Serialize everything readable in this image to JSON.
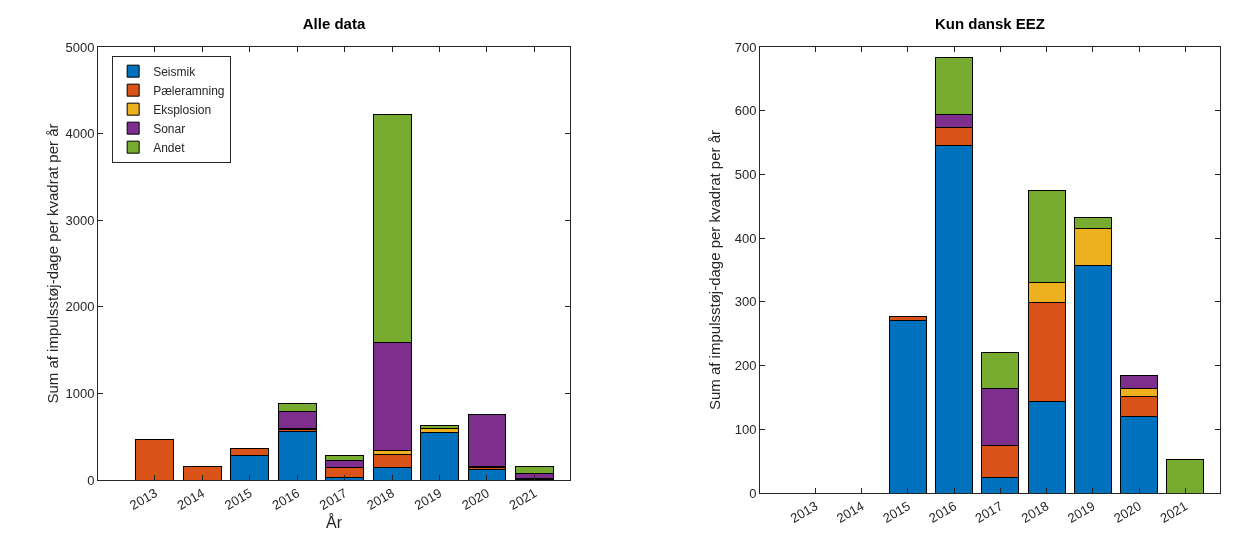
{
  "chart_data": [
    {
      "type": "bar",
      "title": "Alle data",
      "xlabel": "År",
      "ylabel": "Sum af impulsstøj-dage per kvadrat per år",
      "categories": [
        "2013",
        "2014",
        "2015",
        "2016",
        "2017",
        "2018",
        "2019",
        "2020",
        "2021"
      ],
      "stacked": true,
      "legend": "top left",
      "grid": false,
      "ylim": [
        0,
        5000
      ],
      "yticks": [
        0,
        1000,
        2000,
        3000,
        4000,
        5000
      ],
      "series": [
        {
          "name": "Seismik",
          "color": "#0072bd",
          "values": [
            null,
            null,
            280,
            560,
            30,
            150,
            550,
            120,
            null
          ]
        },
        {
          "name": "Pæleramning",
          "color": "#d95319",
          "values": [
            470,
            160,
            80,
            20,
            110,
            150,
            null,
            30,
            10
          ]
        },
        {
          "name": "Eksplosion",
          "color": "#edb120",
          "values": [
            null,
            null,
            null,
            10,
            null,
            40,
            50,
            10,
            10
          ]
        },
        {
          "name": "Sonar",
          "color": "#7e2f8e",
          "values": [
            null,
            null,
            null,
            200,
            90,
            1250,
            null,
            600,
            60
          ]
        },
        {
          "name": "Andet",
          "color": "#77ac30",
          "values": [
            null,
            null,
            null,
            90,
            50,
            2630,
            30,
            null,
            80
          ]
        }
      ]
    },
    {
      "type": "bar",
      "title": "Kun dansk EEZ",
      "ylabel": "Sum af impulsstøj-dage per kvadrat per år",
      "categories": [
        "2013",
        "2014",
        "2015",
        "2016",
        "2017",
        "2018",
        "2019",
        "2020",
        "2021"
      ],
      "stacked": true,
      "legend": false,
      "grid": false,
      "ylim": [
        0,
        700
      ],
      "yticks": [
        0,
        100,
        200,
        300,
        400,
        500,
        600,
        700
      ],
      "series": [
        {
          "color": "#0072bd",
          "values": [
            null,
            null,
            270,
            546,
            24,
            143,
            357,
            120,
            null
          ]
        },
        {
          "color": "#d95319",
          "values": [
            null,
            null,
            7,
            28,
            50,
            156,
            null,
            31,
            null
          ]
        },
        {
          "color": "#edb120",
          "values": [
            null,
            null,
            null,
            null,
            null,
            31,
            58,
            13,
            null
          ]
        },
        {
          "color": "#7e2f8e",
          "values": [
            null,
            null,
            null,
            20,
            90,
            null,
            null,
            21,
            null
          ]
        },
        {
          "color": "#77ac30",
          "values": [
            null,
            null,
            null,
            90,
            56,
            144,
            17,
            null,
            53
          ]
        }
      ]
    }
  ]
}
